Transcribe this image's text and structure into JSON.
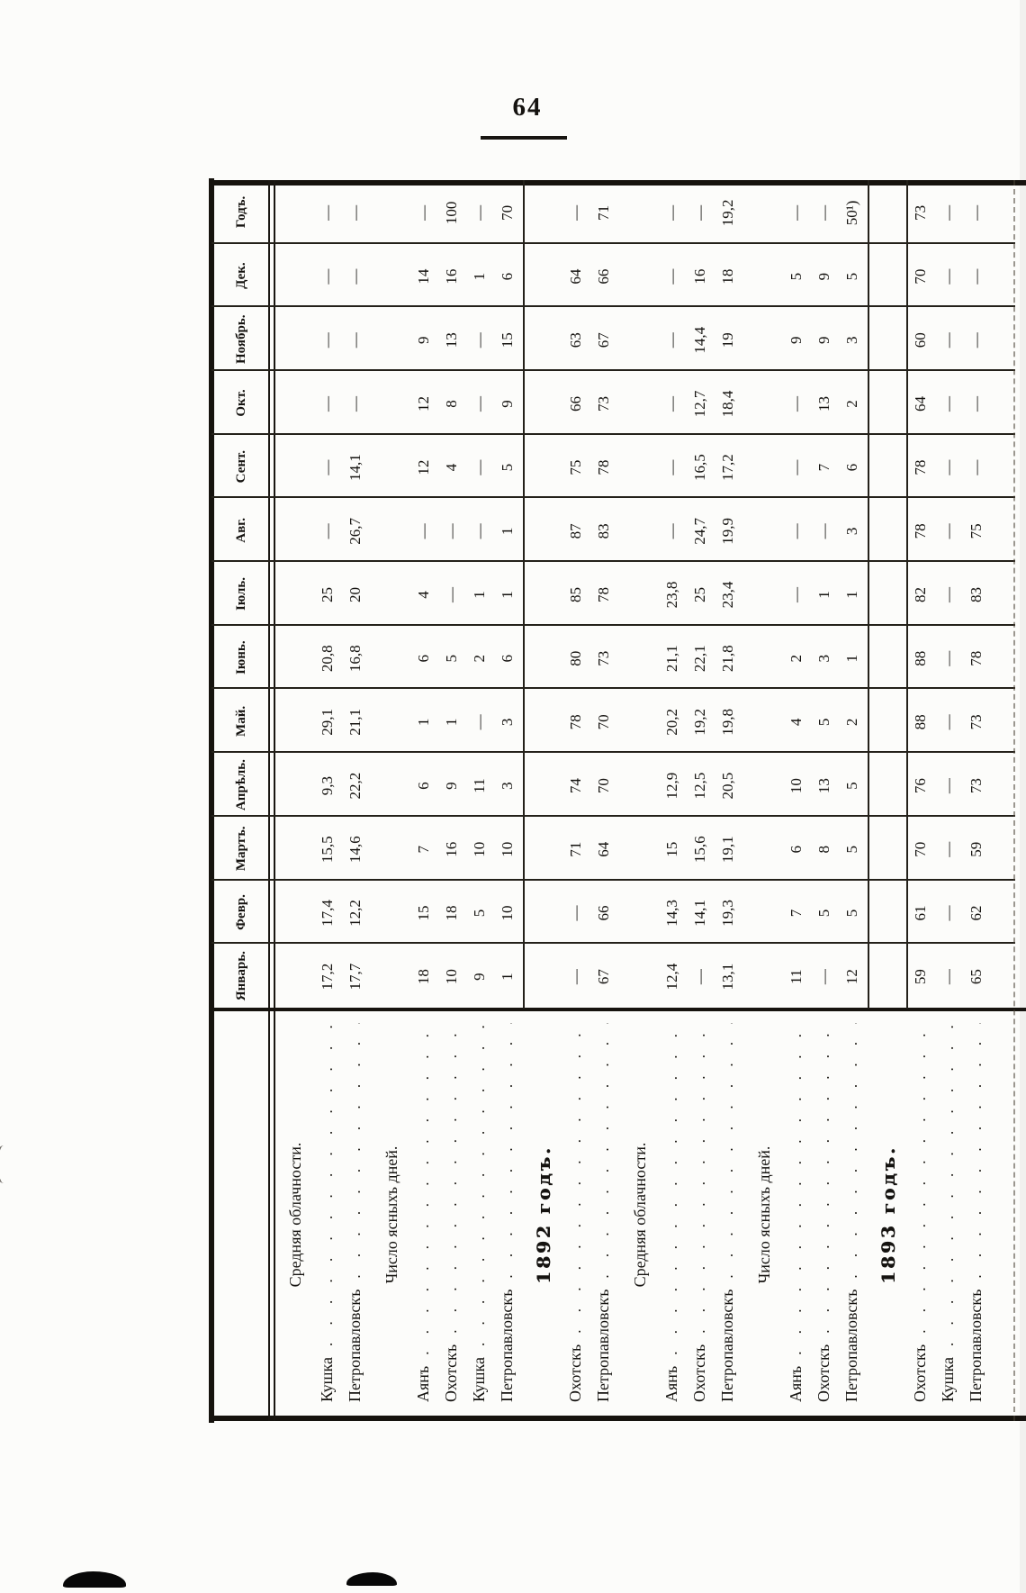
{
  "page": {
    "number": "64"
  },
  "table": {
    "months": [
      "Январь.",
      "Февр.",
      "Мартъ.",
      "Апрѣль.",
      "Май.",
      "Іюнь.",
      "Іюль.",
      "Авг.",
      "Сент.",
      "Окт.",
      "Ноябрь.",
      "Дек.",
      "Годъ."
    ],
    "rows": [
      {
        "type": "section",
        "label": "Средняя облачности."
      },
      {
        "type": "data",
        "label": "Кушка",
        "values": [
          "17,2",
          "17,4",
          "15,5",
          "9,3",
          "29,1",
          "20,8",
          "25",
          "—",
          "—",
          "—",
          "—",
          "—",
          "—"
        ]
      },
      {
        "type": "data",
        "label": "Петропавловскъ",
        "values": [
          "17,7",
          "12,2",
          "14,6",
          "22,2",
          "21,1",
          "16,8",
          "20",
          "26,7",
          "14,1",
          "—",
          "—",
          "—",
          "—"
        ]
      },
      {
        "type": "section",
        "label": "Число ясныхъ дней."
      },
      {
        "type": "data",
        "label": "Аянъ",
        "values": [
          "18",
          "15",
          "7",
          "6",
          "1",
          "6",
          "4",
          "—",
          "12",
          "12",
          "9",
          "14",
          "—"
        ]
      },
      {
        "type": "data",
        "label": "Охотскъ",
        "values": [
          "10",
          "18",
          "16",
          "9",
          "1",
          "5",
          "—",
          "—",
          "4",
          "8",
          "13",
          "16",
          "100"
        ]
      },
      {
        "type": "data",
        "label": "Кушка",
        "values": [
          "9",
          "5",
          "10",
          "11",
          "—",
          "2",
          "1",
          "—",
          "—",
          "—",
          "—",
          "1",
          "—"
        ]
      },
      {
        "type": "data",
        "label": "Петропавловскъ",
        "values": [
          "1",
          "10",
          "10",
          "3",
          "3",
          "6",
          "1",
          "1",
          "5",
          "9",
          "15",
          "6",
          "70"
        ]
      },
      {
        "type": "section",
        "style": "year",
        "rule": "top",
        "label": "1892 годъ."
      },
      {
        "type": "data",
        "label": "Охотскъ",
        "values": [
          "—",
          "—",
          "71",
          "74",
          "78",
          "80",
          "85",
          "87",
          "75",
          "66",
          "63",
          "64",
          "—"
        ]
      },
      {
        "type": "data",
        "label": "Петропавловскъ",
        "values": [
          "67",
          "66",
          "64",
          "70",
          "70",
          "73",
          "78",
          "83",
          "78",
          "73",
          "67",
          "66",
          "71"
        ]
      },
      {
        "type": "section",
        "label": "Средняя облачности."
      },
      {
        "type": "data",
        "label": "Аянъ",
        "values": [
          "12,4",
          "14,3",
          "15",
          "12,9",
          "20,2",
          "21,1",
          "23,8",
          "—",
          "—",
          "—",
          "—",
          "—",
          "—"
        ]
      },
      {
        "type": "data",
        "label": "Охотскъ",
        "values": [
          "—",
          "14,1",
          "15,6",
          "12,5",
          "19,2",
          "22,1",
          "25",
          "24,7",
          "16,5",
          "12,7",
          "14,4",
          "16",
          "—"
        ]
      },
      {
        "type": "data",
        "label": "Петропавловскъ",
        "values": [
          "13,1",
          "19,3",
          "19,1",
          "20,5",
          "19,8",
          "21,8",
          "23,4",
          "19,9",
          "17,2",
          "18,4",
          "19",
          "18",
          "19,2"
        ]
      },
      {
        "type": "section",
        "label": "Число ясныхъ дней."
      },
      {
        "type": "data",
        "label": "Аянъ",
        "values": [
          "11",
          "7",
          "6",
          "10",
          "4",
          "2",
          "—",
          "—",
          "—",
          "—",
          "9",
          "5",
          "—"
        ]
      },
      {
        "type": "data",
        "label": "Охотскъ",
        "values": [
          "—",
          "5",
          "8",
          "13",
          "5",
          "3",
          "1",
          "—",
          "7",
          "13",
          "9",
          "9",
          "—"
        ]
      },
      {
        "type": "data",
        "label": "Петропавловскъ",
        "values": [
          "12",
          "5",
          "5",
          "5",
          "2",
          "1",
          "1",
          "3",
          "6",
          "2",
          "3",
          "5",
          "50¹)"
        ]
      },
      {
        "type": "section",
        "style": "year",
        "rule": "both",
        "label": "1893 годъ."
      },
      {
        "type": "data",
        "label": "Охотскъ",
        "values": [
          "59",
          "61",
          "70",
          "76",
          "88",
          "88",
          "82",
          "78",
          "78",
          "64",
          "60",
          "70",
          "73"
        ]
      },
      {
        "type": "data",
        "label": "Кушка",
        "values": [
          "—",
          "—",
          "—",
          "—",
          "—",
          "—",
          "—",
          "—",
          "—",
          "—",
          "—",
          "—",
          "—"
        ]
      },
      {
        "type": "data",
        "label": "Петропавловскъ",
        "values": [
          "65",
          "62",
          "59",
          "73",
          "73",
          "78",
          "83",
          "75",
          "—",
          "—",
          "—",
          "—",
          "—"
        ]
      }
    ]
  }
}
